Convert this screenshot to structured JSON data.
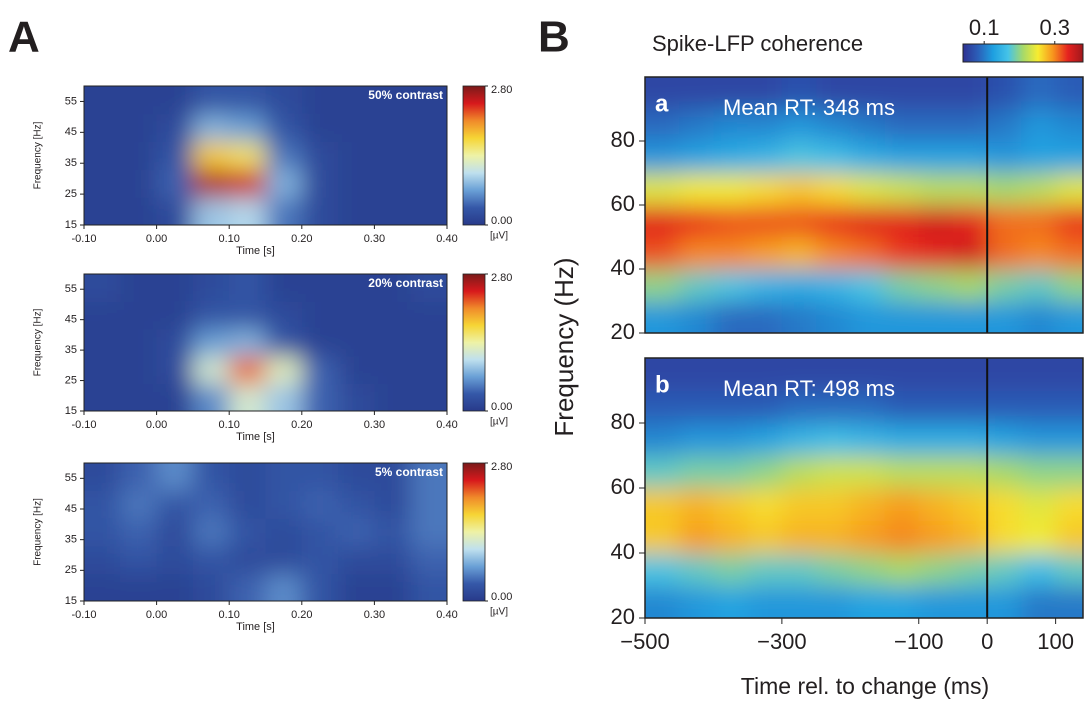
{
  "panel_labels": [
    "A",
    "B"
  ],
  "chart_data": [
    {
      "type": "heatmap",
      "title": "50% contrast",
      "xlabel": "Time [s]",
      "ylabel": "Frequency [Hz]",
      "xlim": [
        -0.1,
        0.4
      ],
      "ylim": [
        15,
        60
      ],
      "xticks": [
        {
          "value": -0.1,
          "label": "-0.10"
        },
        {
          "value": 0,
          "label": "0.00"
        },
        {
          "value": 0.1,
          "label": "0.10"
        },
        {
          "value": 0.2,
          "label": "0.20"
        },
        {
          "value": 0.3,
          "label": "0.30"
        },
        {
          "value": 0.4,
          "label": "0.40"
        }
      ],
      "yticks": [
        15,
        25,
        35,
        45,
        55
      ],
      "xbins": [
        -0.1,
        -0.05,
        0,
        0.05,
        0.1,
        0.15,
        0.2,
        0.25,
        0.3,
        0.35,
        0.4
      ],
      "ybins": [
        15,
        24,
        33,
        42,
        51,
        60
      ],
      "z": [
        [
          0.1,
          0.1,
          0.2,
          0.9,
          1.0,
          0.5,
          0.2,
          0.1,
          0.1,
          0.1
        ],
        [
          0.1,
          0.1,
          0.4,
          2.6,
          2.5,
          0.8,
          0.2,
          0.1,
          0.1,
          0.1
        ],
        [
          0.1,
          0.1,
          0.3,
          1.8,
          1.6,
          0.5,
          0.2,
          0.1,
          0.1,
          0.1
        ],
        [
          0.1,
          0.1,
          0.2,
          0.8,
          0.7,
          0.3,
          0.1,
          0.1,
          0.1,
          0.1
        ],
        [
          0.1,
          0.1,
          0.1,
          0.3,
          0.3,
          0.2,
          0.1,
          0.1,
          0.1,
          0.1
        ]
      ],
      "zlim": [
        0,
        2.8
      ],
      "zticks": [
        {
          "value": 0,
          "label": "0.00"
        },
        {
          "value": 2.8,
          "label": "2.80"
        }
      ],
      "zunit": "[µV]",
      "colormap": [
        "#283a8a",
        "#3558a8",
        "#6aa0d6",
        "#bfe0ee",
        "#eef2a6",
        "#f6d535",
        "#f08a2a",
        "#d7191c",
        "#7a1a1a"
      ]
    },
    {
      "type": "heatmap",
      "title": "20% contrast",
      "xlabel": "Time [s]",
      "ylabel": "Frequency [Hz]",
      "xlim": [
        -0.1,
        0.4
      ],
      "ylim": [
        15,
        60
      ],
      "xticks": [
        {
          "value": -0.1,
          "label": "-0.10"
        },
        {
          "value": 0,
          "label": "0.00"
        },
        {
          "value": 0.1,
          "label": "0.10"
        },
        {
          "value": 0.2,
          "label": "0.20"
        },
        {
          "value": 0.3,
          "label": "0.30"
        },
        {
          "value": 0.4,
          "label": "0.40"
        }
      ],
      "yticks": [
        15,
        25,
        35,
        45,
        55
      ],
      "xbins": [
        -0.1,
        -0.05,
        0,
        0.05,
        0.1,
        0.15,
        0.2,
        0.25,
        0.3,
        0.35,
        0.4
      ],
      "ybins": [
        15,
        24,
        33,
        42,
        51,
        60
      ],
      "z": [
        [
          0.1,
          0.1,
          0.1,
          0.6,
          1.2,
          0.9,
          0.4,
          0.2,
          0.1,
          0.1
        ],
        [
          0.1,
          0.1,
          0.2,
          1.2,
          2.2,
          1.3,
          0.4,
          0.1,
          0.1,
          0.1
        ],
        [
          0.1,
          0.1,
          0.2,
          0.7,
          0.8,
          0.3,
          0.1,
          0.1,
          0.1,
          0.1
        ],
        [
          0.1,
          0.1,
          0.1,
          0.3,
          0.3,
          0.2,
          0.1,
          0.1,
          0.1,
          0.1
        ],
        [
          0.2,
          0.1,
          0.1,
          0.2,
          0.3,
          0.1,
          0.1,
          0.1,
          0.1,
          0.2
        ]
      ],
      "zlim": [
        0,
        2.8
      ],
      "zticks": [
        {
          "value": 0,
          "label": "0.00"
        },
        {
          "value": 2.8,
          "label": "2.80"
        }
      ],
      "zunit": "[µV]",
      "colormap": [
        "#283a8a",
        "#3558a8",
        "#6aa0d6",
        "#bfe0ee",
        "#eef2a6",
        "#f6d535",
        "#f08a2a",
        "#d7191c",
        "#7a1a1a"
      ]
    },
    {
      "type": "heatmap",
      "title": "5% contrast",
      "xlabel": "Time [s]",
      "ylabel": "Frequency [Hz]",
      "xlim": [
        -0.1,
        0.4
      ],
      "ylim": [
        15,
        60
      ],
      "xticks": [
        {
          "value": -0.1,
          "label": "-0.10"
        },
        {
          "value": 0,
          "label": "0.00"
        },
        {
          "value": 0.1,
          "label": "0.10"
        },
        {
          "value": 0.2,
          "label": "0.20"
        },
        {
          "value": 0.3,
          "label": "0.30"
        },
        {
          "value": 0.4,
          "label": "0.40"
        }
      ],
      "yticks": [
        15,
        25,
        35,
        45,
        55
      ],
      "xbins": [
        -0.1,
        -0.05,
        0,
        0.05,
        0.1,
        0.15,
        0.2,
        0.25,
        0.3,
        0.35,
        0.4
      ],
      "ybins": [
        15,
        24,
        33,
        42,
        51,
        60
      ],
      "z": [
        [
          0.1,
          0.1,
          0.1,
          0.2,
          0.4,
          0.6,
          0.3,
          0.1,
          0.1,
          0.3
        ],
        [
          0.2,
          0.3,
          0.2,
          0.3,
          0.2,
          0.2,
          0.3,
          0.2,
          0.2,
          0.4
        ],
        [
          0.3,
          0.4,
          0.2,
          0.5,
          0.3,
          0.2,
          0.3,
          0.4,
          0.3,
          0.5
        ],
        [
          0.3,
          0.5,
          0.3,
          0.4,
          0.2,
          0.3,
          0.4,
          0.3,
          0.2,
          0.5
        ],
        [
          0.2,
          0.4,
          0.6,
          0.3,
          0.2,
          0.3,
          0.3,
          0.2,
          0.2,
          0.5
        ]
      ],
      "zlim": [
        0,
        2.8
      ],
      "zticks": [
        {
          "value": 0,
          "label": "0.00"
        },
        {
          "value": 2.8,
          "label": "2.80"
        }
      ],
      "zunit": "[µV]",
      "colormap": [
        "#283a8a",
        "#3558a8",
        "#6aa0d6",
        "#bfe0ee",
        "#eef2a6",
        "#f6d535",
        "#f08a2a",
        "#d7191c",
        "#7a1a1a"
      ]
    },
    {
      "type": "heatmap",
      "label": "a",
      "title": "Mean RT: 348 ms",
      "colorbar_title": "Spike-LFP coherence",
      "ylabel": "Frequency (Hz)",
      "xlim": [
        -500,
        140
      ],
      "ylim": [
        20,
        100
      ],
      "yticks": [
        20,
        40,
        60,
        80
      ],
      "xbins": [
        -500,
        -450,
        -400,
        -350,
        -300,
        -250,
        -200,
        -150,
        -100,
        -50,
        0,
        50,
        100,
        150
      ],
      "ybins": [
        20,
        30,
        40,
        50,
        60,
        70,
        80,
        90,
        100
      ],
      "z": [
        [
          0.12,
          0.11,
          0.09,
          0.09,
          0.1,
          0.11,
          0.12,
          0.12,
          0.12,
          0.12,
          0.12,
          0.11,
          0.12
        ],
        [
          0.2,
          0.18,
          0.17,
          0.15,
          0.14,
          0.15,
          0.17,
          0.19,
          0.2,
          0.21,
          0.19,
          0.18,
          0.2
        ],
        [
          0.32,
          0.3,
          0.3,
          0.29,
          0.28,
          0.3,
          0.31,
          0.33,
          0.34,
          0.35,
          0.31,
          0.3,
          0.31
        ],
        [
          0.34,
          0.33,
          0.32,
          0.32,
          0.32,
          0.33,
          0.34,
          0.34,
          0.35,
          0.34,
          0.31,
          0.31,
          0.33
        ],
        [
          0.24,
          0.25,
          0.25,
          0.26,
          0.27,
          0.26,
          0.24,
          0.23,
          0.22,
          0.22,
          0.21,
          0.22,
          0.24
        ],
        [
          0.12,
          0.13,
          0.14,
          0.15,
          0.17,
          0.16,
          0.14,
          0.13,
          0.13,
          0.13,
          0.12,
          0.13,
          0.13
        ],
        [
          0.09,
          0.1,
          0.11,
          0.11,
          0.12,
          0.11,
          0.1,
          0.09,
          0.09,
          0.09,
          0.1,
          0.12,
          0.11
        ],
        [
          0.06,
          0.06,
          0.06,
          0.06,
          0.07,
          0.06,
          0.06,
          0.06,
          0.06,
          0.06,
          0.07,
          0.09,
          0.08
        ]
      ],
      "zlim": [
        0.04,
        0.38
      ],
      "zticks": [
        0.1,
        0.3
      ],
      "vline": 0,
      "colormap": [
        "#2e3192",
        "#2b5fb8",
        "#1e9fe0",
        "#45c3e8",
        "#a6d96a",
        "#f7ec30",
        "#f7941d",
        "#e5221f",
        "#a0181c"
      ]
    },
    {
      "type": "heatmap",
      "label": "b",
      "title": "Mean RT: 498 ms",
      "xlabel": "Time rel. to change (ms)",
      "xlim": [
        -500,
        140
      ],
      "ylim": [
        20,
        100
      ],
      "yticks": [
        20,
        40,
        60,
        80
      ],
      "xticks": [
        {
          "value": -500,
          "label": "−500"
        },
        {
          "value": -300,
          "label": "−300"
        },
        {
          "value": -100,
          "label": "−100"
        },
        0,
        100
      ],
      "xbins": [
        -500,
        -450,
        -400,
        -350,
        -300,
        -250,
        -200,
        -150,
        -100,
        -50,
        0,
        50,
        100,
        150
      ],
      "ybins": [
        20,
        30,
        40,
        50,
        60,
        70,
        80,
        90,
        100
      ],
      "z": [
        [
          0.11,
          0.12,
          0.13,
          0.12,
          0.12,
          0.12,
          0.13,
          0.13,
          0.12,
          0.12,
          0.12,
          0.1,
          0.1
        ],
        [
          0.17,
          0.18,
          0.19,
          0.18,
          0.18,
          0.19,
          0.2,
          0.21,
          0.2,
          0.19,
          0.18,
          0.16,
          0.18
        ],
        [
          0.27,
          0.29,
          0.28,
          0.27,
          0.28,
          0.28,
          0.29,
          0.3,
          0.29,
          0.28,
          0.26,
          0.25,
          0.27
        ],
        [
          0.27,
          0.28,
          0.27,
          0.26,
          0.27,
          0.27,
          0.28,
          0.29,
          0.28,
          0.27,
          0.26,
          0.24,
          0.26
        ],
        [
          0.18,
          0.19,
          0.19,
          0.2,
          0.22,
          0.23,
          0.23,
          0.22,
          0.22,
          0.22,
          0.21,
          0.2,
          0.2
        ],
        [
          0.11,
          0.12,
          0.12,
          0.13,
          0.15,
          0.16,
          0.15,
          0.14,
          0.14,
          0.14,
          0.13,
          0.12,
          0.12
        ],
        [
          0.08,
          0.08,
          0.08,
          0.08,
          0.09,
          0.09,
          0.09,
          0.08,
          0.08,
          0.08,
          0.08,
          0.08,
          0.08
        ],
        [
          0.06,
          0.06,
          0.06,
          0.06,
          0.06,
          0.06,
          0.06,
          0.06,
          0.06,
          0.06,
          0.06,
          0.06,
          0.06
        ]
      ],
      "zlim": [
        0.04,
        0.38
      ],
      "vline": 0,
      "colormap": [
        "#2e3192",
        "#2b5fb8",
        "#1e9fe0",
        "#45c3e8",
        "#a6d96a",
        "#f7ec30",
        "#f7941d",
        "#e5221f",
        "#a0181c"
      ]
    }
  ]
}
